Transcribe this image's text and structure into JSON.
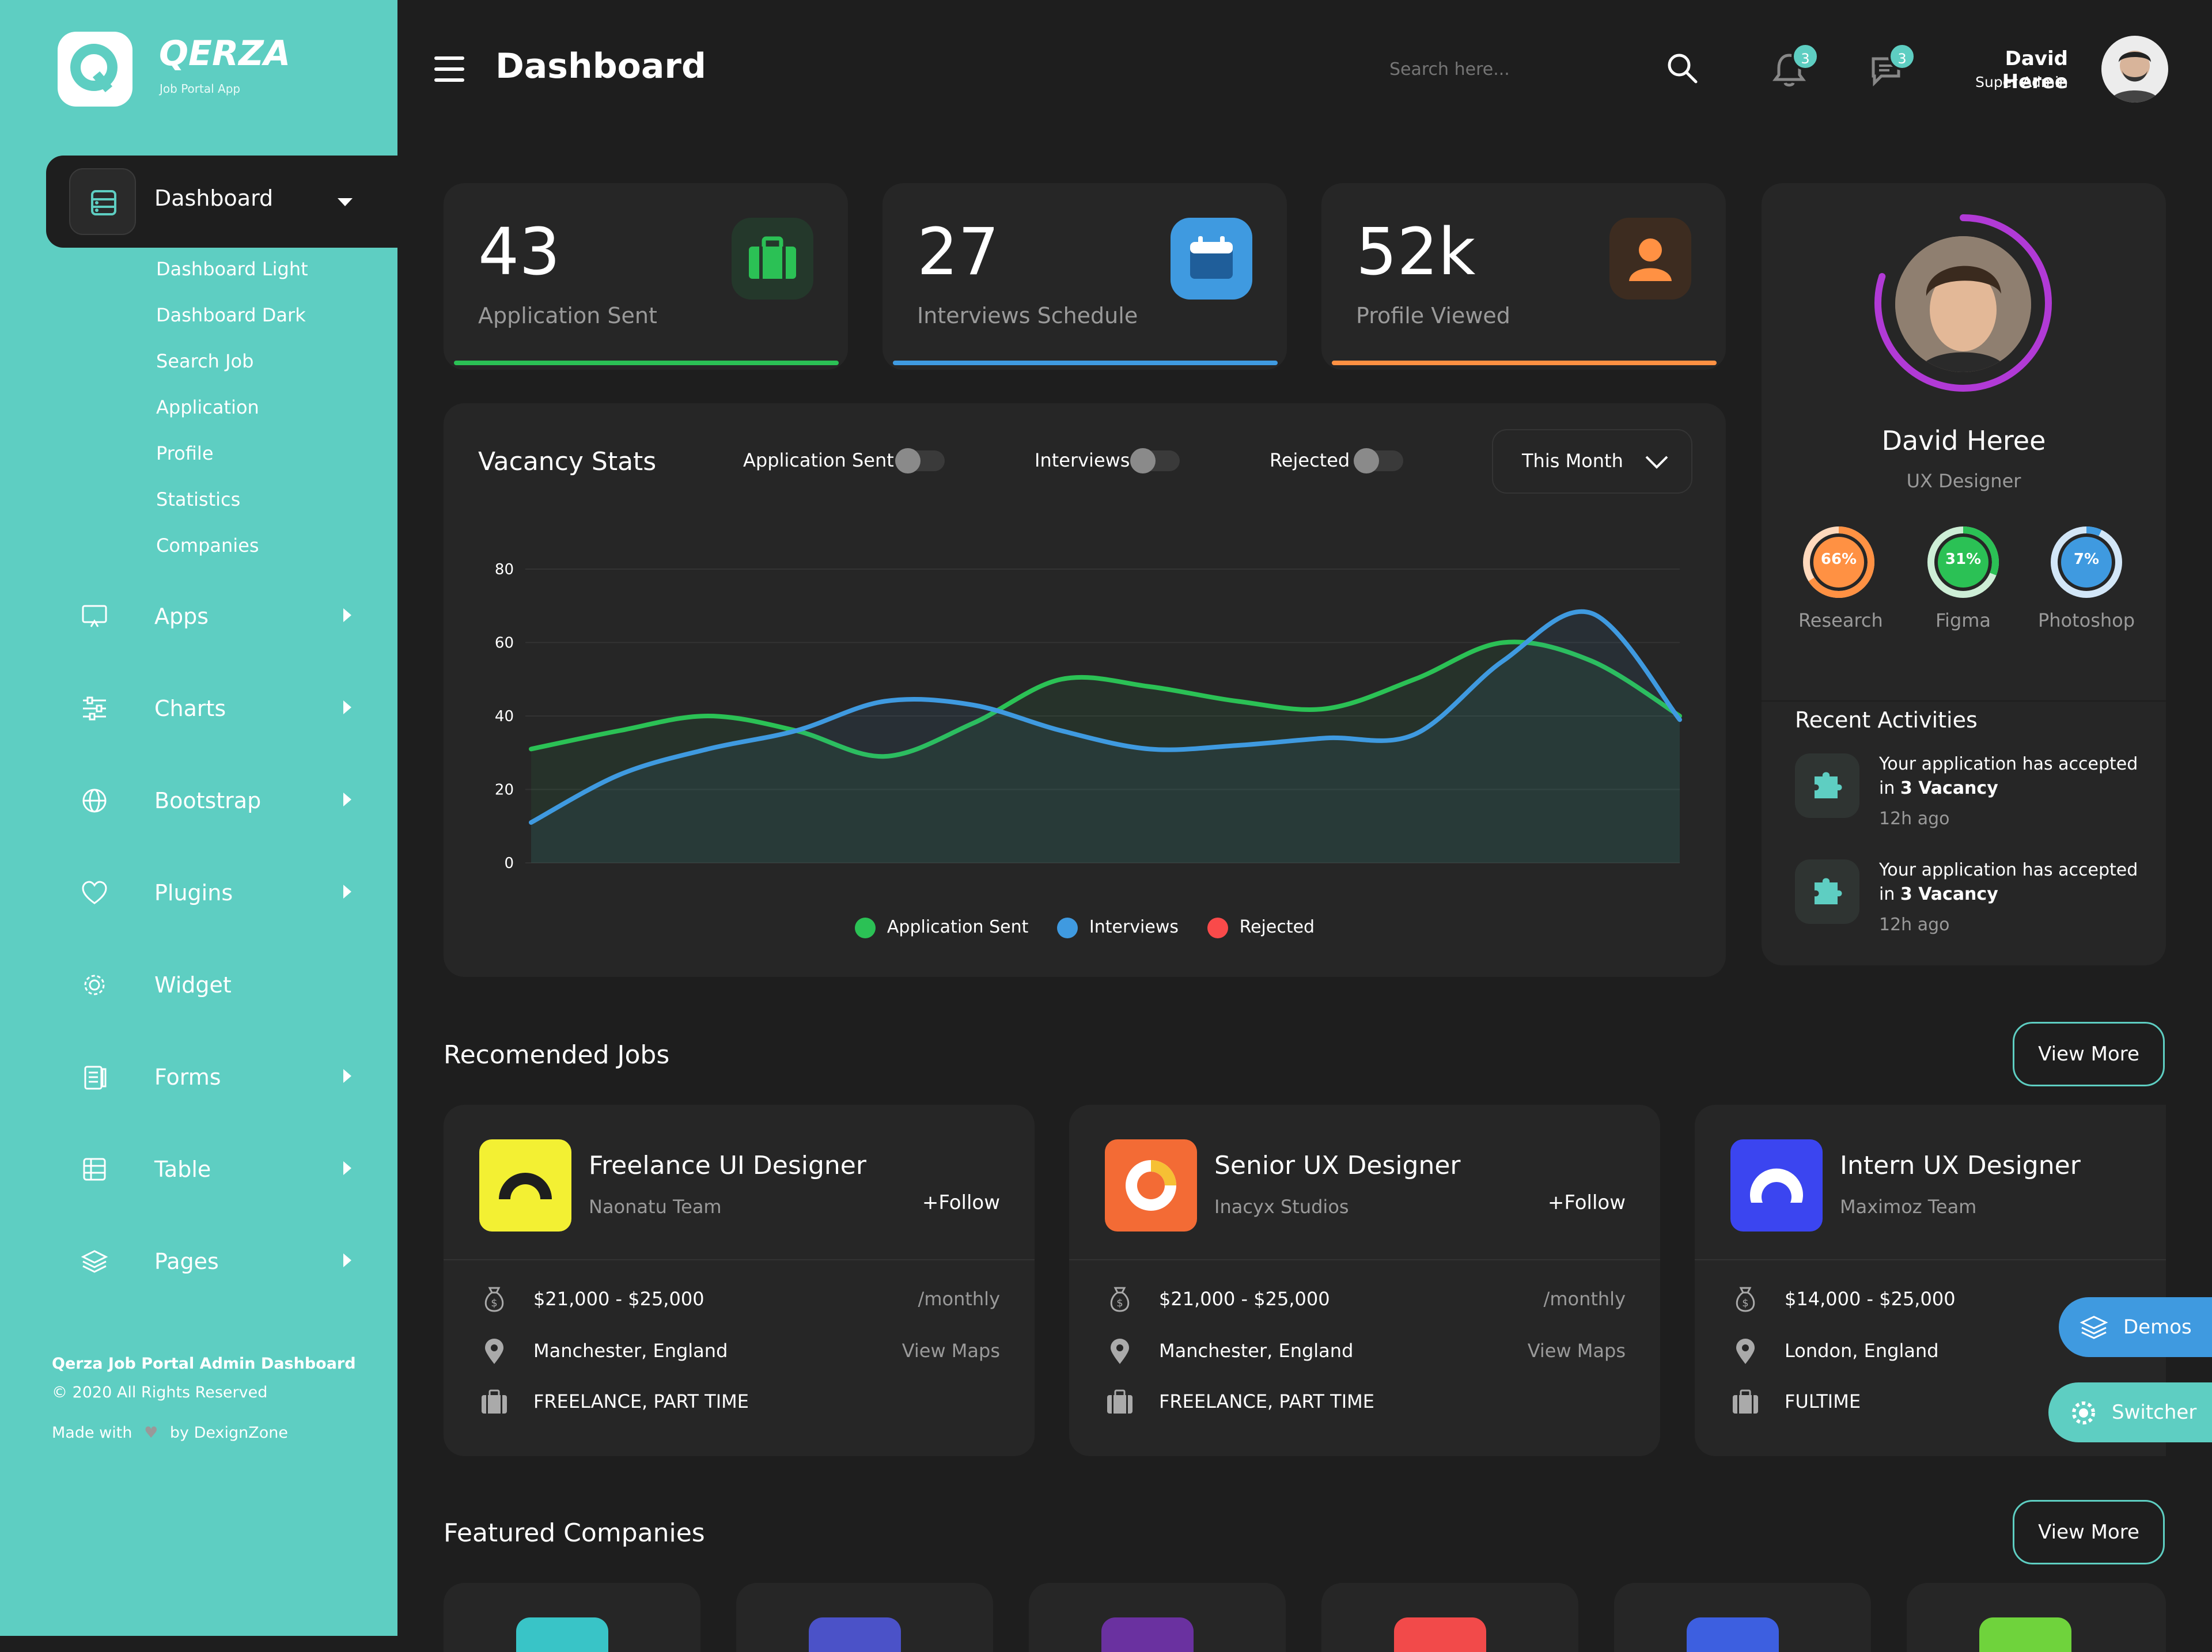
{
  "sidebar": {
    "brand": "QERZA",
    "brand_sub": "Job Portal App",
    "active": "Dashboard",
    "submenu": [
      "Dashboard Light",
      "Dashboard Dark",
      "Search Job",
      "Application",
      "Profile",
      "Statistics",
      "Companies"
    ],
    "items": [
      {
        "label": "Apps",
        "icon": "monitor-icon"
      },
      {
        "label": "Charts",
        "icon": "sliders-icon"
      },
      {
        "label": "Bootstrap",
        "icon": "globe-icon"
      },
      {
        "label": "Plugins",
        "icon": "heart-icon"
      },
      {
        "label": "Widget",
        "icon": "gear-icon"
      },
      {
        "label": "Forms",
        "icon": "clipboard-icon"
      },
      {
        "label": "Table",
        "icon": "table-icon"
      },
      {
        "label": "Pages",
        "icon": "layers-icon"
      }
    ],
    "footer_title": "Qerza Job Portal Admin Dashboard",
    "footer_copy": "© 2020 All Rights Reserved",
    "footer_made_1": "Made with",
    "footer_made_2": "by DexignZone"
  },
  "header": {
    "title": "Dashboard",
    "search_placeholder": "Search here...",
    "notif_count": "3",
    "msg_count": "3",
    "user_name": "David Heree",
    "user_role": "Super Admin"
  },
  "stats": [
    {
      "value": "43",
      "label": "Application Sent",
      "color": "#2bc155",
      "icon": "briefcase-icon"
    },
    {
      "value": "27",
      "label": "Interviews Schedule",
      "color": "#3f9ae0",
      "icon": "calendar-icon"
    },
    {
      "value": "52k",
      "label": "Profile Viewed",
      "color": "#ff9143",
      "icon": "user-icon"
    }
  ],
  "vacancy": {
    "title": "Vacancy Stats",
    "toggles": [
      "Application Sent",
      "Interviews",
      "Rejected"
    ],
    "range": "This Month",
    "legend": [
      "Application Sent",
      "Interviews",
      "Rejected"
    ]
  },
  "chart_data": {
    "type": "area",
    "ylim": [
      0,
      80
    ],
    "yticks": [
      0,
      20,
      40,
      60,
      80
    ],
    "grid": true,
    "legend_position": "bottom",
    "series": [
      {
        "name": "Application Sent",
        "color": "#2bc155",
        "values": [
          31,
          36,
          40,
          36,
          29,
          38,
          50,
          48,
          44,
          42,
          50,
          60,
          55,
          40
        ]
      },
      {
        "name": "Interviews",
        "color": "#3f9ae0",
        "values": [
          11,
          24,
          31,
          36,
          44,
          43,
          36,
          31,
          32,
          34,
          35,
          55,
          68,
          39
        ]
      },
      {
        "name": "Rejected",
        "color": "#f94a4a",
        "values": []
      }
    ]
  },
  "profile": {
    "name": "David Heree",
    "role": "UX Designer",
    "progress": 0.8,
    "skills": [
      {
        "label": "Research",
        "value": "66%",
        "color": "#ff9143",
        "track": "#ffd9bd"
      },
      {
        "label": "Figma",
        "value": "31%",
        "color": "#2bc155",
        "track": "#cdeed6"
      },
      {
        "label": "Photoshop",
        "value": "7%",
        "color": "#3f9ae0",
        "track": "#d2e6f7"
      }
    ]
  },
  "activities": {
    "title": "Recent Activities",
    "items": [
      {
        "line1": "Your application has accepted",
        "line2_a": "in ",
        "line2_b": "3 Vacancy",
        "time": "12h ago"
      },
      {
        "line1": "Your application has accepted",
        "line2_a": "in ",
        "line2_b": "3 Vacancy",
        "time": "12h ago"
      }
    ]
  },
  "jobs": {
    "title": "Recomended Jobs",
    "view_more": "View More",
    "cards": [
      {
        "title": "Freelance UI Designer",
        "company": "Naonatu Team",
        "follow": "+Follow",
        "salary": "$21,000 - $25,000",
        "period": "/monthly",
        "location": "Manchester, England",
        "maps": "View Maps",
        "type": "FREELANCE, PART TIME",
        "logo_bg": "#f3f033"
      },
      {
        "title": "Senior UX Designer",
        "company": "Inacyx Studios",
        "follow": "+Follow",
        "salary": "$21,000 - $25,000",
        "period": "/monthly",
        "location": "Manchester, England",
        "maps": "View Maps",
        "type": "FREELANCE, PART TIME",
        "logo_bg": "#f36b35"
      },
      {
        "title": "Intern UX Designer",
        "company": "Maximoz Team",
        "follow": "",
        "salary": "$14,000 - $25,000",
        "period": "",
        "location": "London, England",
        "maps": "",
        "type": "FULTIME",
        "logo_bg": "#3b45f0"
      }
    ]
  },
  "companies": {
    "title": "Featured Companies",
    "view_more": "View More",
    "logo_colors": [
      "#39c4c7",
      "#4b52c8",
      "#6a31a0",
      "#f24a4a",
      "#3d5fe0",
      "#6fd33c"
    ]
  },
  "floating": {
    "demos": "Demos",
    "switcher": "Switcher"
  }
}
